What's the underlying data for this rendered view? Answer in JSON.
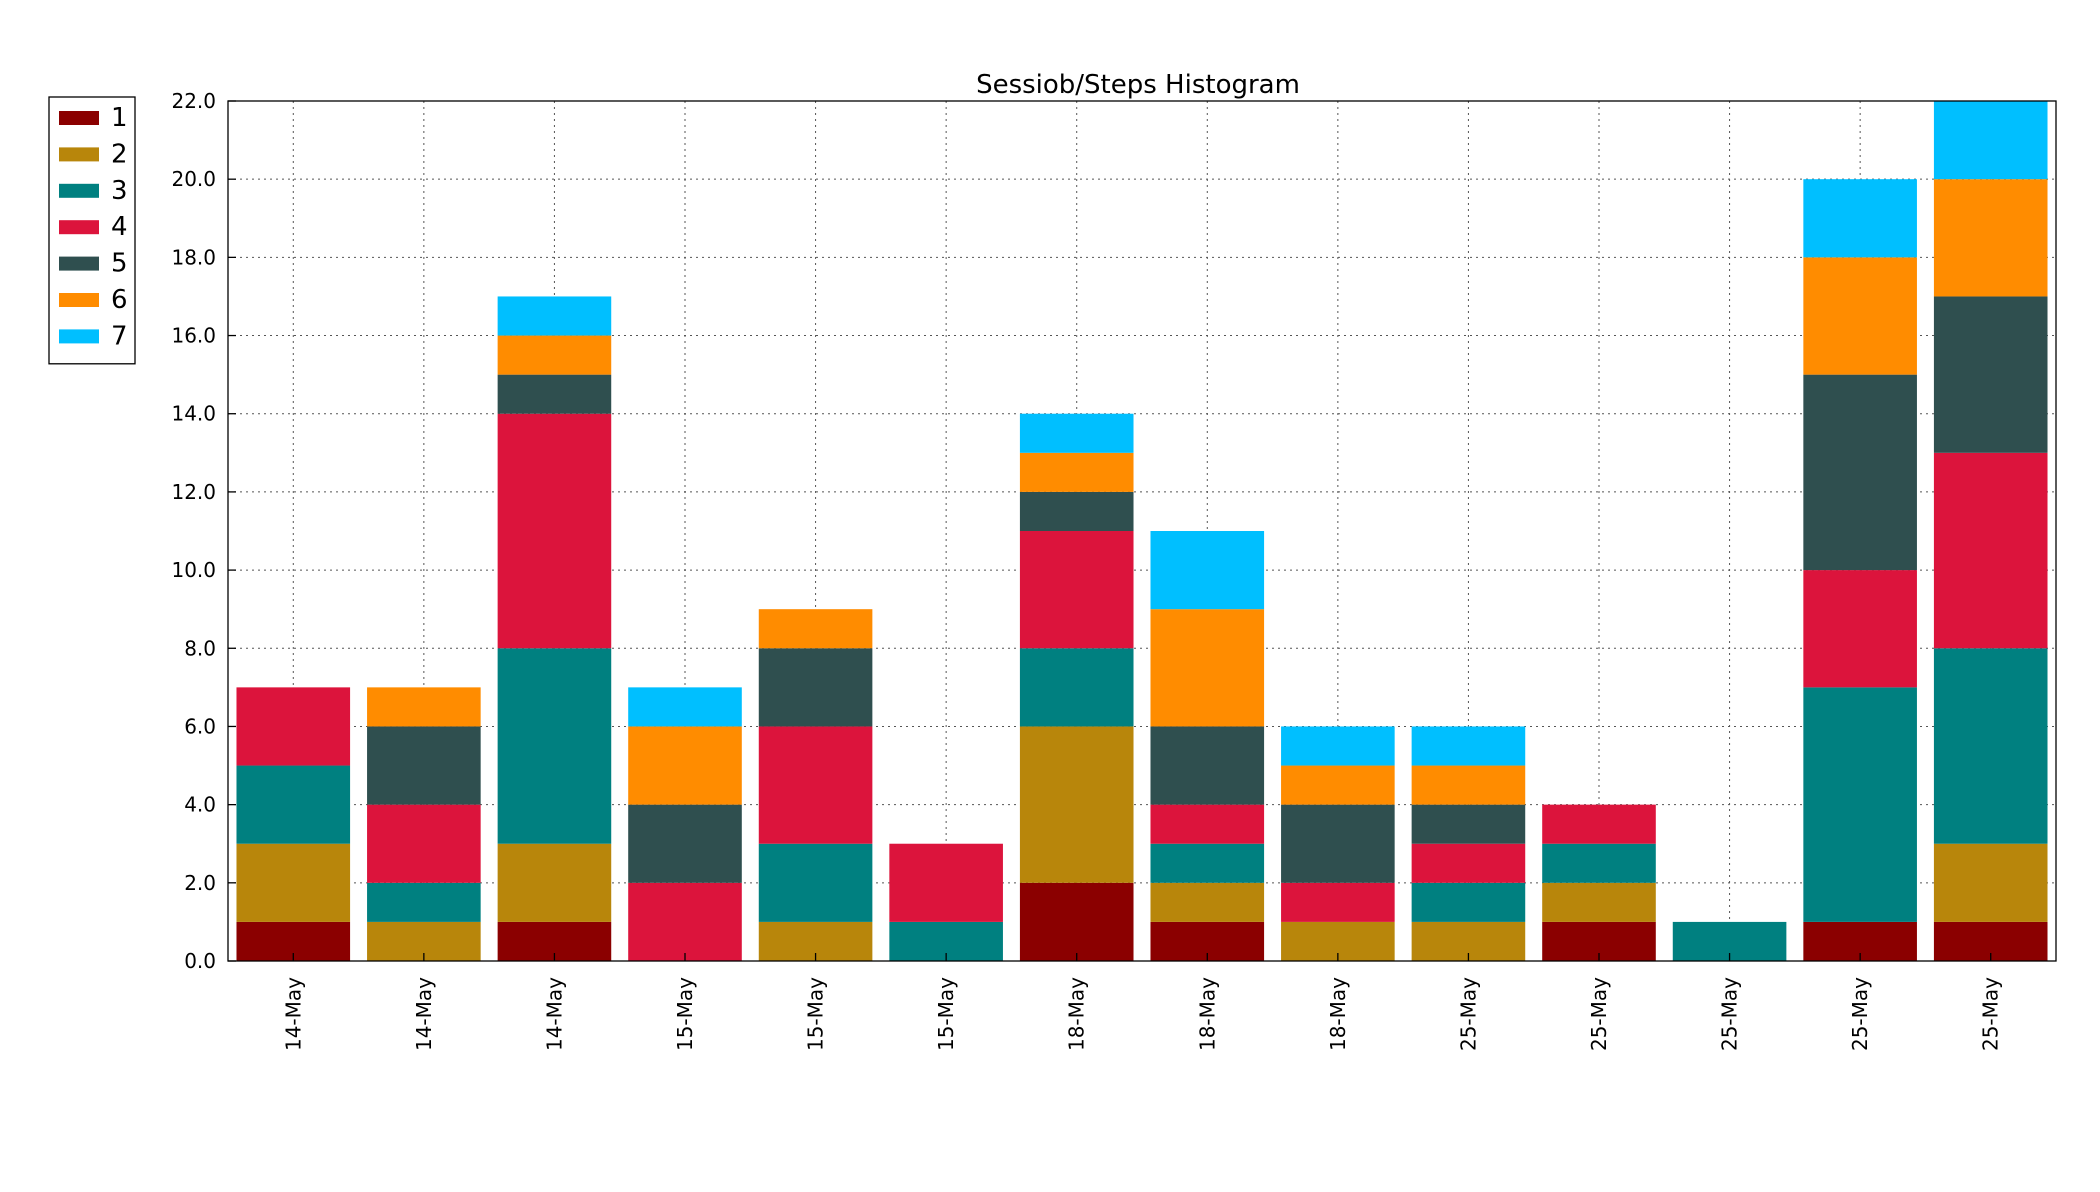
{
  "chart_data": {
    "type": "bar",
    "stacked": true,
    "title": "Sessiob/Steps Histogram",
    "xlabel": "",
    "ylabel": "",
    "ylim": [
      0,
      22
    ],
    "yticks": [
      0,
      2,
      4,
      6,
      8,
      10,
      12,
      14,
      16,
      18,
      20,
      22
    ],
    "ytick_labels": [
      "0.0",
      "2.0",
      "4.0",
      "6.0",
      "8.0",
      "10.0",
      "12.0",
      "14.0",
      "16.0",
      "18.0",
      "20.0",
      "22.0"
    ],
    "grid": true,
    "legend_position": "top-left, outside plot",
    "categories": [
      "14-May",
      "14-May",
      "14-May",
      "15-May",
      "15-May",
      "15-May",
      "18-May",
      "18-May",
      "18-May",
      "25-May",
      "25-May",
      "25-May",
      "25-May",
      "25-May"
    ],
    "series": [
      {
        "name": "1",
        "color": "#8b0000",
        "values": [
          1,
          0,
          1,
          0,
          0,
          0,
          2,
          1,
          0,
          0,
          1,
          0,
          1,
          1
        ]
      },
      {
        "name": "2",
        "color": "#b8860b",
        "values": [
          2,
          1,
          2,
          0,
          1,
          0,
          4,
          1,
          1,
          1,
          1,
          0,
          0,
          2
        ]
      },
      {
        "name": "3",
        "color": "#008080",
        "values": [
          2,
          1,
          5,
          0,
          2,
          1,
          2,
          1,
          0,
          1,
          1,
          1,
          6,
          5
        ]
      },
      {
        "name": "4",
        "color": "#dc143c",
        "values": [
          2,
          2,
          6,
          2,
          3,
          2,
          3,
          1,
          1,
          1,
          1,
          0,
          3,
          5
        ]
      },
      {
        "name": "5",
        "color": "#2f4f4f",
        "values": [
          0,
          2,
          1,
          2,
          2,
          0,
          1,
          2,
          2,
          1,
          0,
          0,
          5,
          4
        ]
      },
      {
        "name": "6",
        "color": "#ff8c00",
        "values": [
          0,
          1,
          1,
          2,
          1,
          0,
          1,
          3,
          1,
          1,
          0,
          0,
          3,
          3
        ]
      },
      {
        "name": "7",
        "color": "#00bfff",
        "values": [
          0,
          0,
          1,
          1,
          0,
          0,
          1,
          2,
          1,
          1,
          0,
          0,
          2,
          2
        ]
      }
    ]
  }
}
